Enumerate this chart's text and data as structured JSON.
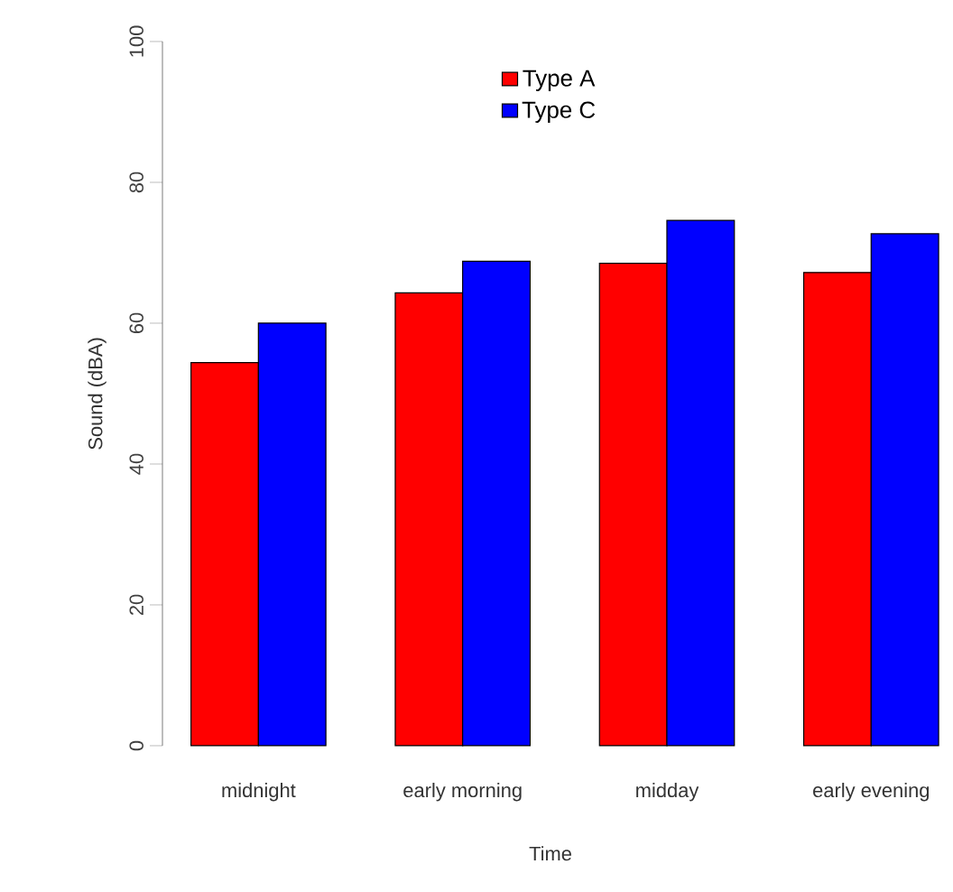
{
  "chart_data": {
    "type": "bar",
    "xlabel": "Time",
    "ylabel": "Sound (dBA)",
    "categories": [
      "midnight",
      "early morning",
      "midday",
      "early evening"
    ],
    "series": [
      {
        "name": "Type A",
        "color": "#ff0000",
        "values": [
          54.4,
          64.3,
          68.5,
          67.2
        ]
      },
      {
        "name": "Type C",
        "color": "#0000ff",
        "values": [
          60.0,
          68.8,
          74.6,
          72.7
        ]
      }
    ],
    "ylim": [
      0,
      100
    ],
    "yticks": [
      0,
      20,
      40,
      60,
      80,
      100
    ],
    "grid": false,
    "legend": "top"
  }
}
